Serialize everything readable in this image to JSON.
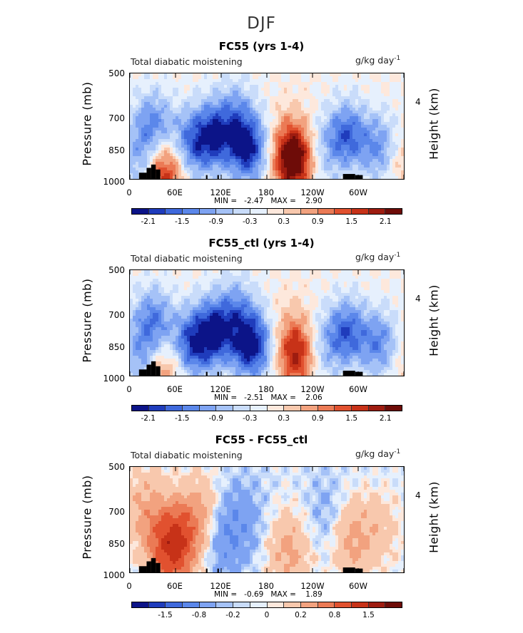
{
  "figure": {
    "title": "DJF"
  },
  "colors": [
    "#0c1488",
    "#1f3cbc",
    "#3f69dc",
    "#5b87ea",
    "#7ea3f2",
    "#a5c2f7",
    "#c9dcfa",
    "#e6f0fd",
    "#fde8dc",
    "#f8c8ad",
    "#f2a27f",
    "#eb7a55",
    "#e1512f",
    "#c73218",
    "#9e1c10",
    "#6e0c08"
  ],
  "chart_data": [
    {
      "type": "heatmap",
      "title": "FC55 (yrs 1-4)",
      "subtitle_left": "Total diabatic moistening",
      "units": "g/kg day",
      "units_exp": "-1",
      "ylabel": "Pressure (mb)",
      "ylabel_right": "Height (km)",
      "yticks": [
        "500",
        "700",
        "850",
        "1000"
      ],
      "yticks_right": [
        "4"
      ],
      "xticks": [
        "0",
        "60E",
        "120E",
        "180",
        "120W",
        "60W"
      ],
      "ylim": [
        1000,
        500
      ],
      "xlim": [
        0,
        360
      ],
      "min_text": "MIN =   -2.47",
      "max_text": "MAX =    2.90",
      "cbar_labels": [
        "-2.1",
        "-1.5",
        "-0.9",
        "-0.3",
        "0.3",
        "0.9",
        "1.5",
        "2.1"
      ],
      "features": [
        {
          "lon": 30,
          "p": 700,
          "value": -1.3
        },
        {
          "lon": 45,
          "p": 950,
          "value": 1.9
        },
        {
          "lon": 15,
          "p": 900,
          "value": -1.0
        },
        {
          "lon": 80,
          "p": 800,
          "value": -1.4
        },
        {
          "lon": 110,
          "p": 750,
          "value": -1.8
        },
        {
          "lon": 155,
          "p": 820,
          "value": -2.1
        },
        {
          "lon": 140,
          "p": 650,
          "value": -0.9
        },
        {
          "lon": 215,
          "p": 880,
          "value": 2.9
        },
        {
          "lon": 210,
          "p": 700,
          "value": 0.3
        },
        {
          "lon": 250,
          "p": 850,
          "value": -0.7
        },
        {
          "lon": 285,
          "p": 750,
          "value": -1.6
        },
        {
          "lon": 330,
          "p": 820,
          "value": -1.3
        },
        {
          "lon": 355,
          "p": 880,
          "value": 0.7
        }
      ]
    },
    {
      "type": "heatmap",
      "title": "FC55_ctl (yrs 1-4)",
      "subtitle_left": "Total diabatic moistening",
      "units": "g/kg day",
      "units_exp": "-1",
      "ylabel": "Pressure (mb)",
      "ylabel_right": "Height (km)",
      "yticks": [
        "500",
        "700",
        "850",
        "1000"
      ],
      "yticks_right": [
        "4"
      ],
      "xticks": [
        "0",
        "60E",
        "120E",
        "180",
        "120W",
        "60W"
      ],
      "ylim": [
        1000,
        500
      ],
      "xlim": [
        0,
        360
      ],
      "min_text": "MIN =   -2.51",
      "max_text": "MAX =    2.06",
      "cbar_labels": [
        "-2.1",
        "-1.5",
        "-0.9",
        "-0.3",
        "0.3",
        "0.9",
        "1.5",
        "2.1"
      ],
      "features": [
        {
          "lon": 30,
          "p": 700,
          "value": -1.4
        },
        {
          "lon": 45,
          "p": 950,
          "value": 1.1
        },
        {
          "lon": 15,
          "p": 900,
          "value": -1.0
        },
        {
          "lon": 80,
          "p": 820,
          "value": -1.7
        },
        {
          "lon": 110,
          "p": 750,
          "value": -2.0
        },
        {
          "lon": 160,
          "p": 820,
          "value": -2.3
        },
        {
          "lon": 140,
          "p": 650,
          "value": -1.0
        },
        {
          "lon": 220,
          "p": 870,
          "value": 2.0
        },
        {
          "lon": 210,
          "p": 700,
          "value": 0.3
        },
        {
          "lon": 250,
          "p": 850,
          "value": -0.8
        },
        {
          "lon": 285,
          "p": 750,
          "value": -1.6
        },
        {
          "lon": 330,
          "p": 820,
          "value": -1.4
        },
        {
          "lon": 355,
          "p": 880,
          "value": 0.5
        }
      ]
    },
    {
      "type": "heatmap",
      "title": "FC55 - FC55_ctl",
      "subtitle_left": "Total diabatic moistening",
      "units": "g/kg day",
      "units_exp": "-1",
      "ylabel": "Pressure (mb)",
      "ylabel_right": "Height (km)",
      "yticks": [
        "500",
        "700",
        "850",
        "1000"
      ],
      "yticks_right": [
        "4"
      ],
      "xticks": [
        "0",
        "60E",
        "120E",
        "180",
        "120W",
        "60W"
      ],
      "ylim": [
        1000,
        500
      ],
      "xlim": [
        0,
        360
      ],
      "min_text": "MIN =   -0.69",
      "max_text": "MAX =    1.89",
      "cbar_labels": [
        "-1.5",
        "-0.8",
        "-0.2",
        "0",
        "0.2",
        "0.8",
        "1.5"
      ],
      "features": [
        {
          "lon": 20,
          "p": 650,
          "value": 0.5
        },
        {
          "lon": 55,
          "p": 850,
          "value": 1.6
        },
        {
          "lon": 90,
          "p": 700,
          "value": 0.7
        },
        {
          "lon": 120,
          "p": 800,
          "value": -0.5
        },
        {
          "lon": 150,
          "p": 700,
          "value": -0.3
        },
        {
          "lon": 210,
          "p": 870,
          "value": 0.6
        },
        {
          "lon": 260,
          "p": 700,
          "value": -0.3
        },
        {
          "lon": 290,
          "p": 800,
          "value": 0.6
        },
        {
          "lon": 330,
          "p": 750,
          "value": 0.3
        }
      ]
    }
  ]
}
